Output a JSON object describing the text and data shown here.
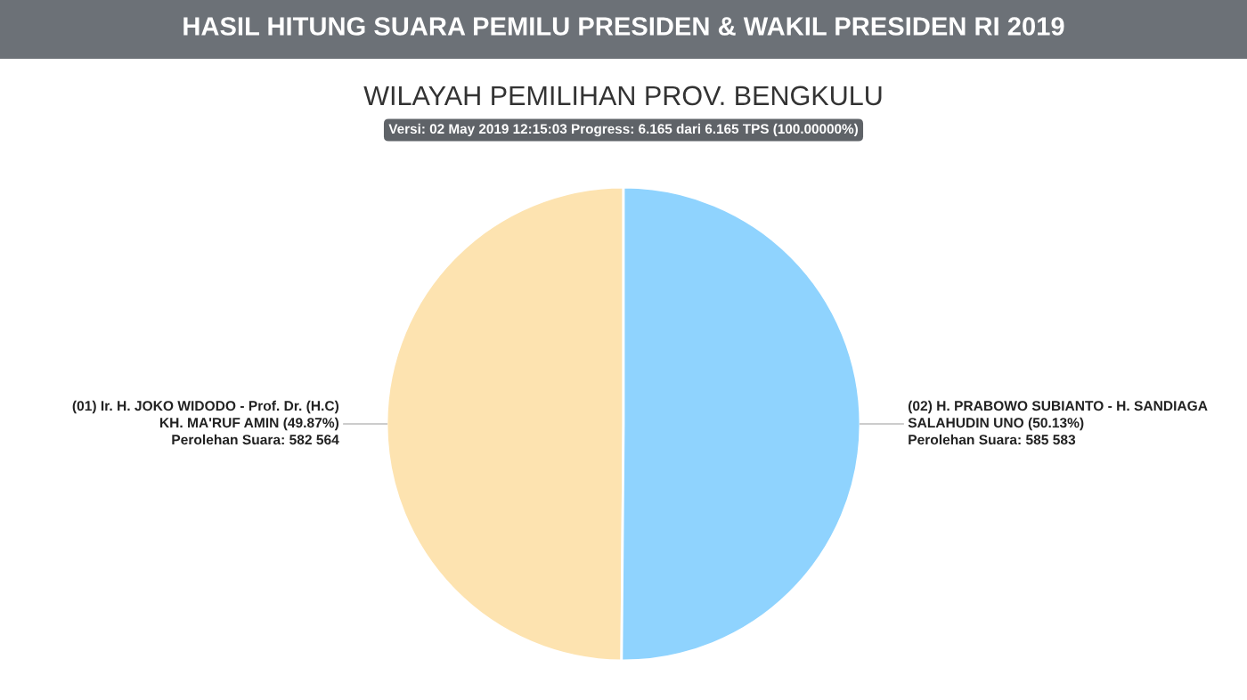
{
  "chart_data": {
    "type": "pie",
    "title": "HASIL HITUNG SUARA PEMILU PRESIDEN & WAKIL PRESIDEN RI 2019",
    "subtitle": "WILAYAH PEMILIHAN PROV. BENGKULU",
    "annotations": [
      "Versi: 02 May 2019 12:15:03 Progress: 6.165 dari 6.165 TPS (100.00000%)"
    ],
    "categories": [
      "(01) Ir. H. JOKO WIDODO - Prof. Dr. (H.C)\nKH. MA'RUF AMIN (49.87%)",
      "(02) H. PRABOWO SUBIANTO - H. SANDIAGA\nSALAHUDIN UNO (50.13%)"
    ],
    "values": [
      582564,
      585583
    ],
    "value_labels": [
      "Perolehan Suara: 582 564",
      "Perolehan Suara: 585 583"
    ],
    "colors": [
      "#fde3b0",
      "#8fd3fe"
    ],
    "legend": false
  }
}
